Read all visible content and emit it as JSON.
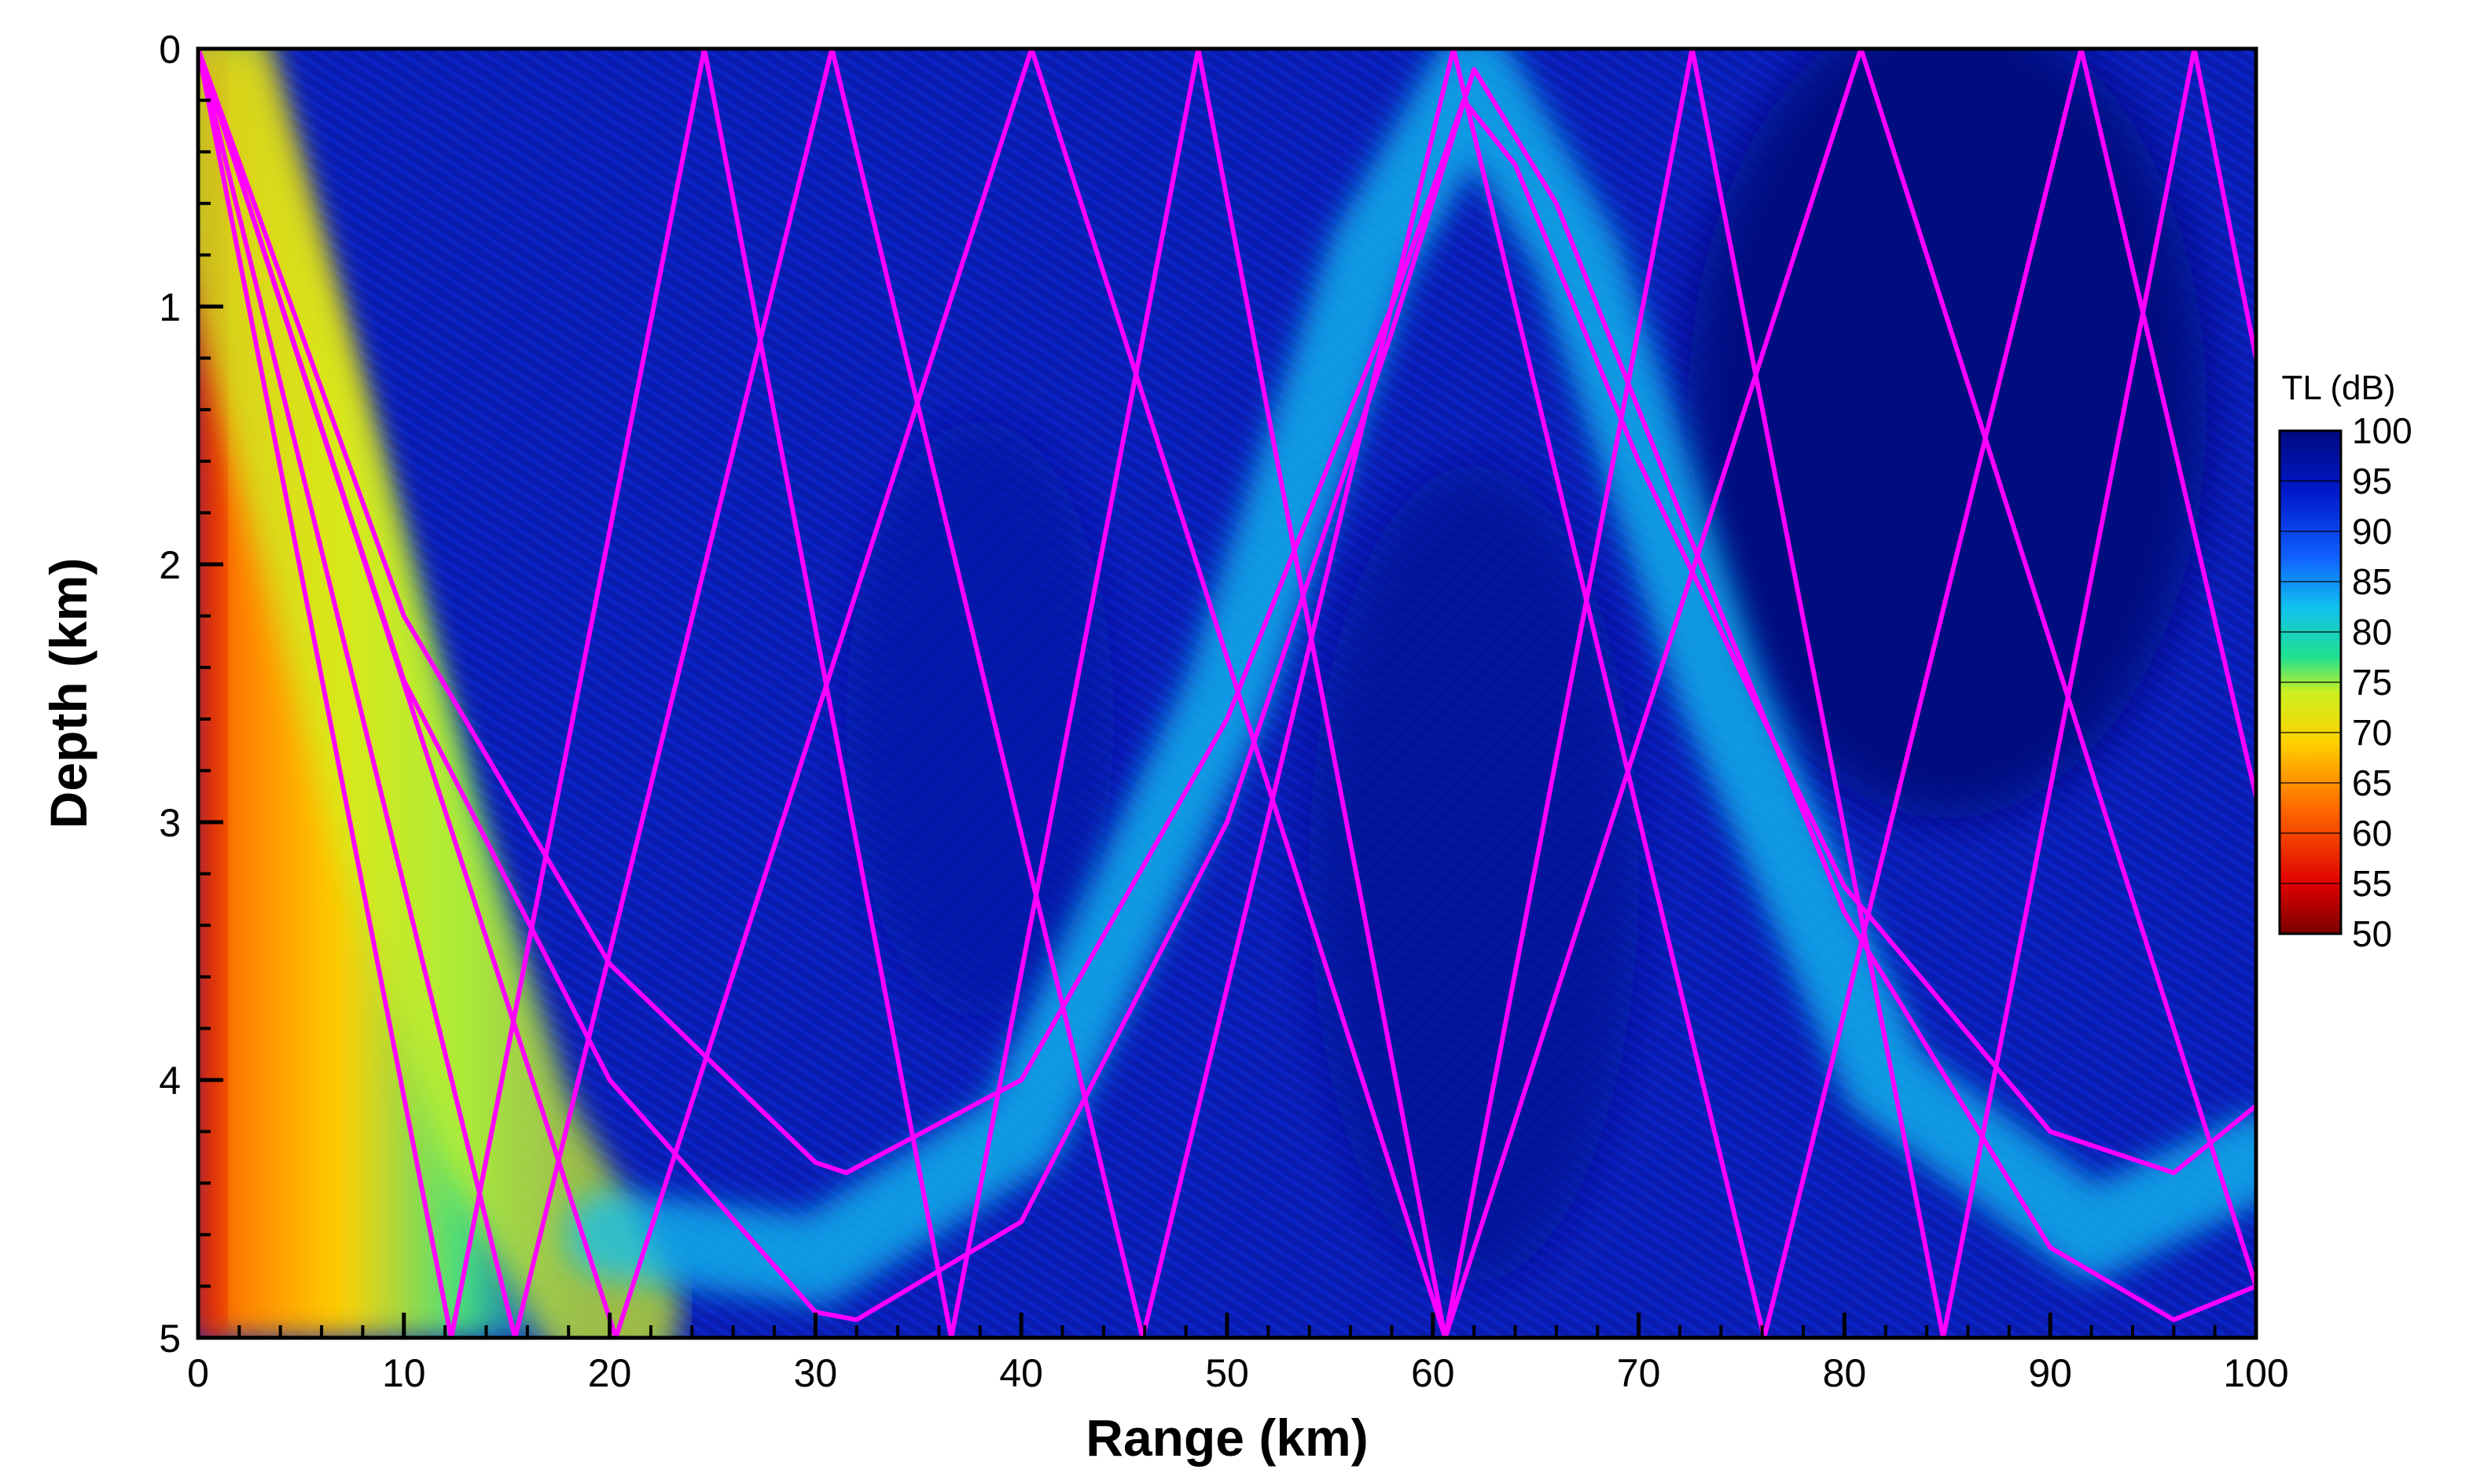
{
  "chart_data": {
    "type": "heatmap",
    "xlabel": "Range (km)",
    "ylabel": "Depth (km)",
    "xlim": [
      0,
      100
    ],
    "ylim": [
      0,
      5
    ],
    "y_inverted": true,
    "xticks": [
      0,
      10,
      20,
      30,
      40,
      50,
      60,
      70,
      80,
      90,
      100
    ],
    "yticks": [
      0,
      1,
      2,
      3,
      4,
      5
    ],
    "colorbar": {
      "title": "TL (dB)",
      "ticks": [
        100,
        95,
        90,
        85,
        80,
        75,
        70,
        65,
        60,
        55,
        50
      ],
      "range": [
        50,
        100
      ],
      "colormap": [
        "#7a0000",
        "#e00000",
        "#ff6a00",
        "#ffd000",
        "#ccf020",
        "#20e090",
        "#10c0f0",
        "#1060ff",
        "#0018c8",
        "#000a80"
      ]
    },
    "background_tl_db": 92,
    "energy_bands": [
      {
        "description_points": [
          [
            0,
            0.0
          ],
          [
            5,
            1.5
          ],
          [
            10,
            3.0
          ],
          [
            15,
            4.2
          ],
          [
            20,
            4.9
          ]
        ],
        "tl_db": 70
      },
      {
        "description_points": [
          [
            20,
            4.6
          ],
          [
            30,
            4.7
          ],
          [
            40,
            4.2
          ],
          [
            50,
            2.5
          ],
          [
            57,
            0.8
          ],
          [
            62,
            0.1
          ],
          [
            67,
            0.8
          ],
          [
            74,
            2.5
          ],
          [
            82,
            4.0
          ],
          [
            92,
            4.6
          ],
          [
            100,
            4.3
          ]
        ],
        "tl_db": 82
      }
    ],
    "ray_color": "#ff00ff",
    "rays": [
      {
        "points": [
          [
            0,
            0
          ],
          [
            12.3,
            5
          ],
          [
            24.6,
            0
          ],
          [
            36.6,
            5
          ],
          [
            48.6,
            0
          ],
          [
            60.6,
            5
          ],
          [
            72.6,
            0
          ],
          [
            84.8,
            5
          ],
          [
            97.0,
            0
          ],
          [
            100,
            1.2
          ]
        ]
      },
      {
        "points": [
          [
            0,
            0
          ],
          [
            15.4,
            5
          ],
          [
            30.8,
            0
          ],
          [
            45.9,
            5
          ],
          [
            61.0,
            0
          ],
          [
            76.1,
            5
          ],
          [
            91.5,
            0
          ],
          [
            100,
            2.9
          ]
        ]
      },
      {
        "points": [
          [
            0,
            0
          ],
          [
            20.3,
            5
          ],
          [
            40.5,
            0
          ],
          [
            60.6,
            5
          ],
          [
            80.8,
            0
          ],
          [
            100,
            4.8
          ]
        ]
      },
      {
        "points": [
          [
            0,
            0
          ],
          [
            10,
            2.2
          ],
          [
            20,
            3.55
          ],
          [
            30,
            4.32
          ],
          [
            31.5,
            4.36
          ],
          [
            40,
            4.0
          ],
          [
            50,
            2.6
          ],
          [
            58,
            1.0
          ],
          [
            61.5,
            0.2
          ],
          [
            64,
            0.45
          ],
          [
            70,
            1.6
          ],
          [
            80,
            3.25
          ],
          [
            90,
            4.2
          ],
          [
            96,
            4.36
          ],
          [
            100,
            4.1
          ]
        ]
      },
      {
        "points": [
          [
            0,
            0
          ],
          [
            10,
            2.45
          ],
          [
            20,
            4.0
          ],
          [
            30,
            4.9
          ],
          [
            32,
            4.93
          ],
          [
            40,
            4.55
          ],
          [
            50,
            3.0
          ],
          [
            58,
            1.1
          ],
          [
            62,
            0.08
          ],
          [
            66,
            0.6
          ],
          [
            72,
            1.8
          ],
          [
            80,
            3.35
          ],
          [
            90,
            4.65
          ],
          [
            96,
            4.93
          ],
          [
            100,
            4.8
          ]
        ]
      }
    ]
  }
}
